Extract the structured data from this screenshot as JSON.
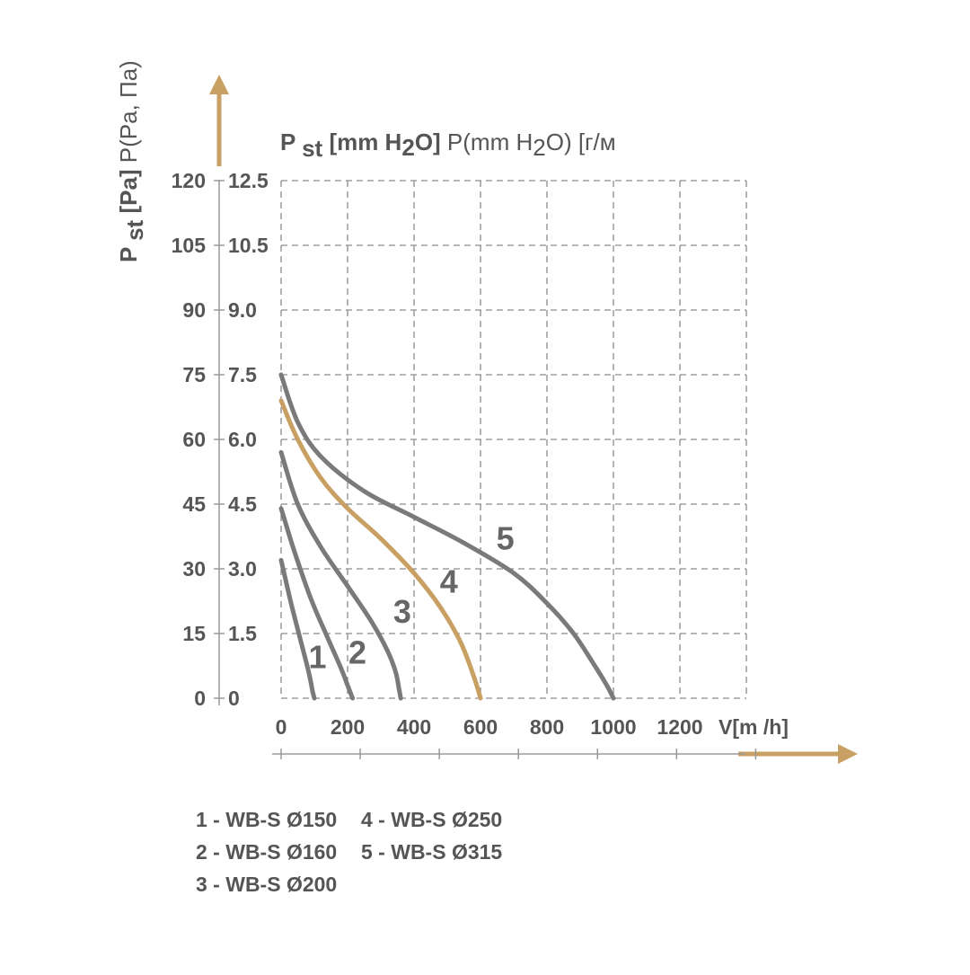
{
  "chart_data": {
    "type": "line",
    "title": "",
    "xlabel": "V[m /h]",
    "ylabel_left": "P st [Pa] P(Pa, Па)",
    "ylabel_top": "P st [mm H2O] P(mm H2O) [г/м",
    "xlim": [
      0,
      1400
    ],
    "ylim": [
      0,
      120
    ],
    "grid": true,
    "x_ticks": [
      "0",
      "200",
      "400",
      "600",
      "800",
      "1000",
      "1200"
    ],
    "y_ticks_pa": [
      "0",
      "15",
      "30",
      "45",
      "60",
      "75",
      "90",
      "105",
      "120"
    ],
    "y_ticks_mm": [
      "0",
      "1.5",
      "3.0",
      "4.5",
      "6.0",
      "7.5",
      "9.0",
      "10.5",
      "12.5"
    ],
    "colors": {
      "series_gray": "#7a7a7a",
      "series_gold": "#c9a063",
      "axis": "#9a9a9a",
      "text": "#555555",
      "arrow": "#c9a063"
    },
    "series": [
      {
        "name": "1",
        "color": "#7a7a7a",
        "x": [
          0,
          30,
          60,
          80,
          90,
          95,
          100
        ],
        "y": [
          32,
          22,
          13,
          7,
          3.5,
          1.5,
          0
        ]
      },
      {
        "name": "2",
        "color": "#7a7a7a",
        "x": [
          0,
          40,
          90,
          140,
          180,
          200,
          210,
          215
        ],
        "y": [
          44,
          34,
          23,
          14,
          7,
          3,
          1,
          0
        ]
      },
      {
        "name": "3",
        "color": "#7a7a7a",
        "x": [
          0,
          50,
          120,
          200,
          270,
          320,
          345,
          355,
          360
        ],
        "y": [
          57,
          45,
          35,
          26,
          18,
          11,
          6,
          2,
          0
        ]
      },
      {
        "name": "4",
        "color": "#c9a063",
        "x": [
          0,
          50,
          120,
          200,
          300,
          400,
          480,
          540,
          580,
          600
        ],
        "y": [
          69,
          60,
          51,
          44,
          37,
          29,
          21,
          13,
          5,
          0
        ]
      },
      {
        "name": "5",
        "color": "#7a7a7a",
        "x": [
          0,
          50,
          120,
          250,
          400,
          550,
          700,
          800,
          880,
          940,
          980,
          1000
        ],
        "y": [
          75,
          64,
          56,
          48,
          42,
          36,
          29,
          22,
          15,
          8,
          3,
          0
        ]
      }
    ],
    "curve_labels": [
      "1",
      "2",
      "3",
      "4",
      "5"
    ],
    "legend": [
      "1 - WB-S Ø150",
      "2 - WB-S Ø160",
      "3 - WB-S Ø200",
      "4 - WB-S Ø250",
      "5 - WB-S Ø315"
    ]
  }
}
